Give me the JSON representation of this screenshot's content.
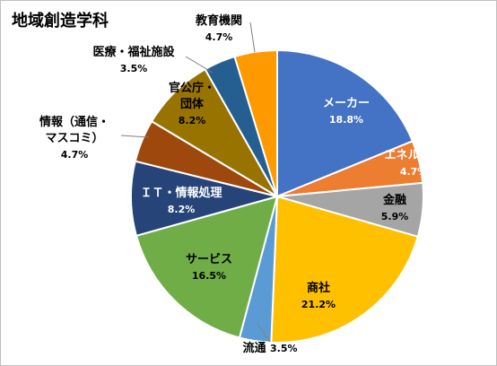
{
  "chart_data": {
    "type": "pie",
    "title": "地域創造学科",
    "slices": [
      {
        "name": "メーカー",
        "value": 18.8,
        "value_label": "18.8%",
        "color": "#4472C4",
        "label_lines": [
          "メーカー"
        ],
        "label_inside": true,
        "label_color": "#FFFFFF"
      },
      {
        "name": "エネルギー",
        "value": 4.7,
        "value_label": "4.7%",
        "color": "#ED7D31",
        "label_lines": [
          "エネルギー"
        ],
        "label_inside": true,
        "label_color": "#FFFFFF"
      },
      {
        "name": "金融",
        "value": 5.9,
        "value_label": "5.9%",
        "color": "#A5A5A5",
        "label_lines": [
          "金融"
        ],
        "label_inside": true,
        "label_color": "#000000"
      },
      {
        "name": "商社",
        "value": 21.2,
        "value_label": "21.2%",
        "color": "#FFC000",
        "label_lines": [
          "商社"
        ],
        "label_inside": true,
        "label_color": "#000000"
      },
      {
        "name": "流通",
        "value": 3.5,
        "value_label": "3.5%",
        "color": "#5B9BD5",
        "label_lines": [
          "流通"
        ],
        "label_inside": false,
        "label_color": "#000000"
      },
      {
        "name": "サービス",
        "value": 16.5,
        "value_label": "16.5%",
        "color": "#70AD47",
        "label_lines": [
          "サービス"
        ],
        "label_inside": true,
        "label_color": "#000000"
      },
      {
        "name": "ＩＴ・情報処理",
        "value": 8.2,
        "value_label": "8.2%",
        "color": "#264478",
        "label_lines": [
          "ＩＴ・情報処理"
        ],
        "label_inside": true,
        "label_color": "#FFFFFF"
      },
      {
        "name": "情報（通信・マスコミ）",
        "value": 4.7,
        "value_label": "4.7%",
        "color": "#9E480E",
        "label_lines": [
          "情報（通信・",
          "マスコミ）"
        ],
        "label_inside": false,
        "label_color": "#000000"
      },
      {
        "name": "官公庁・団体",
        "value": 8.2,
        "value_label": "8.2%",
        "color": "#997300",
        "label_lines": [
          "官公庁・",
          "団体"
        ],
        "label_inside": true,
        "label_color": "#000000"
      },
      {
        "name": "医療・福祉施設",
        "value": 3.5,
        "value_label": "3.5%",
        "color": "#255E91",
        "label_lines": [
          "医療・福祉施設"
        ],
        "label_inside": false,
        "label_color": "#000000"
      },
      {
        "name": "教育機関",
        "value": 4.7,
        "value_label": "4.7%",
        "color": "#FF9900",
        "label_lines": [
          "教育機関"
        ],
        "label_inside": false,
        "label_color": "#000000"
      }
    ]
  }
}
